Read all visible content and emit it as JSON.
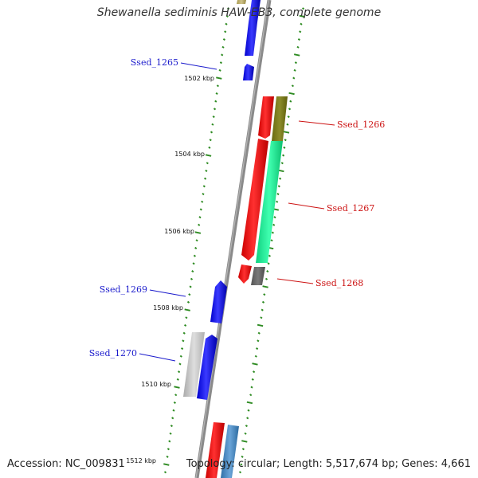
{
  "title": "Shewanella sediminis HAW-EB3, complete genome",
  "accession": "Accession: NC_009831",
  "topology": "Topology: circular; Length: 5,517,674 bp; Genes: 4,661",
  "kbp_ticks": [
    "1502 kbp",
    "1504 kbp",
    "1506 kbp",
    "1508 kbp",
    "1510 kbp",
    "1512 kbp"
  ],
  "gene_labels": [
    "Ssed_1265",
    "Ssed_1266",
    "Ssed_1267",
    "Ssed_1268",
    "Ssed_1269",
    "Ssed_1270"
  ],
  "colors": {
    "backbone": "#808080",
    "tick": "#2e8b22",
    "forward_label": "#1a1acc",
    "reverse_label": "#cc1111",
    "blue": "#1a1aff",
    "red": "#ff1a1a",
    "olive": "#808020",
    "teal": "#22ee99",
    "gray": "#6e6e6e",
    "light_gray": "#c4c4c4",
    "steel_blue": "#4a88c0"
  }
}
